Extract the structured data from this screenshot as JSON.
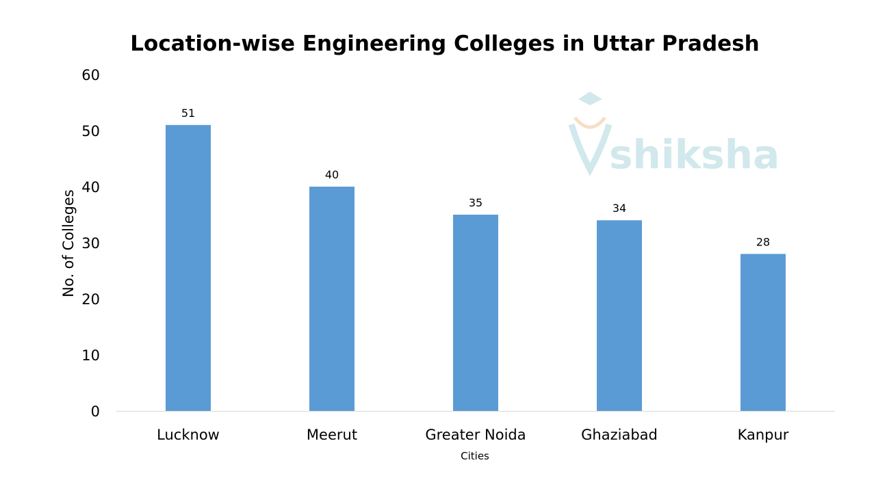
{
  "chart_data": {
    "type": "bar",
    "title": "Location-wise Engineering Colleges in Uttar Pradesh",
    "xlabel": "Cities",
    "ylabel": "No. of Colleges",
    "categories": [
      "Lucknow",
      "Meerut",
      "Greater Noida",
      "Ghaziabad",
      "Kanpur"
    ],
    "values": [
      51,
      40,
      35,
      34,
      28
    ],
    "data_labels": [
      "51",
      "40",
      "35",
      "34",
      "28"
    ],
    "ylim": [
      0,
      60
    ],
    "yticks": [
      "0",
      "10",
      "20",
      "30",
      "40",
      "50",
      "60"
    ],
    "grid": false,
    "legend": "none",
    "bar_color": "#5B9BD5"
  },
  "watermark": {
    "text": "shiksha",
    "color": "#CDE6EA"
  }
}
